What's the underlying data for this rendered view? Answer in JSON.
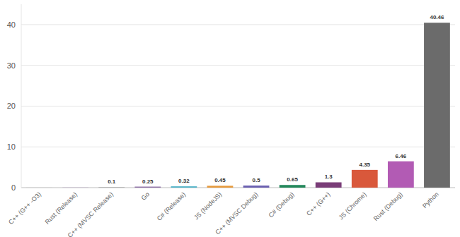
{
  "chart_data": {
    "type": "bar",
    "categories": [
      "C++ (G++ -O3)",
      "Rust (Release)",
      "C++ (MVSC Release)",
      "Go",
      "C# (Release)",
      "JS (NodeJS)",
      "C++ (MVSC Debug)",
      "C# (Debug)",
      "C++ (G++)",
      "JS (Chrome)",
      "Rust (Debug)",
      "Python"
    ],
    "values": [
      0.05,
      0.06,
      0.1,
      0.25,
      0.32,
      0.45,
      0.5,
      0.65,
      1.3,
      4.35,
      6.46,
      40.46
    ],
    "value_labels": [
      null,
      null,
      "0.1",
      "0.25",
      "0.32",
      "0.45",
      "0.5",
      "0.65",
      "1.3",
      "4.35",
      "6.46",
      "40.46"
    ],
    "colors": [
      "#c9c9c9",
      "#b9a7c9",
      "#9a9a9a",
      "#8e6fa6",
      "#4fb3c8",
      "#e79a3c",
      "#6a5fb0",
      "#22875a",
      "#7a3d78",
      "#d9583b",
      "#b25bb4",
      "#6b6b6b"
    ],
    "ylim": [
      0,
      45
    ],
    "yticks": [
      0,
      10,
      20,
      30,
      40
    ],
    "grid": true,
    "data_labels": true
  }
}
